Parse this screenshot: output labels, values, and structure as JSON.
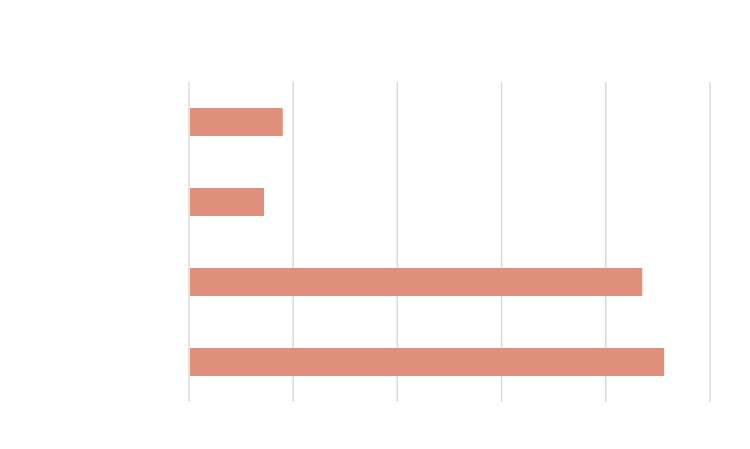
{
  "chart_data": {
    "type": "bar",
    "orientation": "horizontal",
    "title": "",
    "xlabel": "",
    "ylabel": "",
    "categories": [
      "",
      "",
      "",
      ""
    ],
    "values": [
      0.9,
      0.72,
      4.35,
      4.56
    ],
    "xlim": [
      0,
      5
    ],
    "x_gridlines": [
      0,
      1,
      2,
      3,
      4,
      5
    ],
    "grid": true,
    "tick_labels_visible": false,
    "legend": "none",
    "bar_color": "#e08f7a",
    "grid_color": "#d9d9d9"
  }
}
